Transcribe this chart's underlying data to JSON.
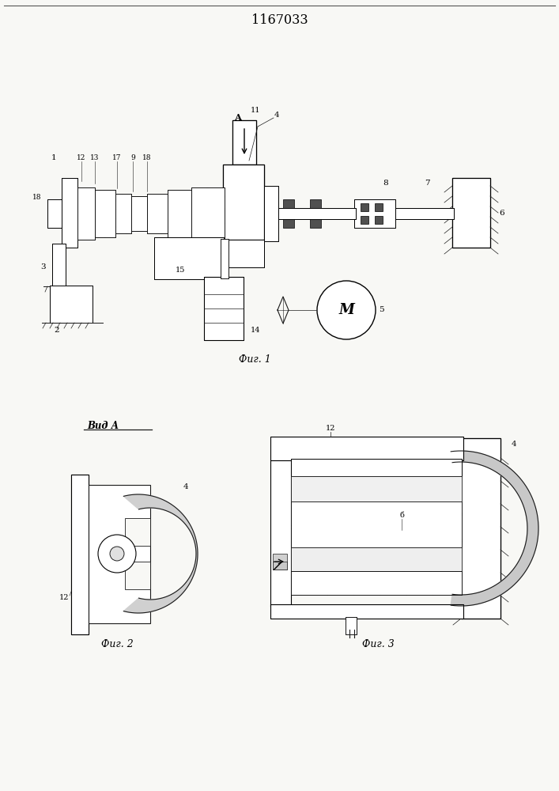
{
  "title": "1167033",
  "background_color": "#f8f8f5",
  "line_color": "#1a1a1a",
  "fig_width": 7.07,
  "fig_height": 10.0,
  "dpi": 100,
  "fig1_caption": "Фиг. 1",
  "fig2_caption": "Фиг. 2",
  "fig3_caption": "Фиг. 3",
  "vid_label": "Вид А"
}
